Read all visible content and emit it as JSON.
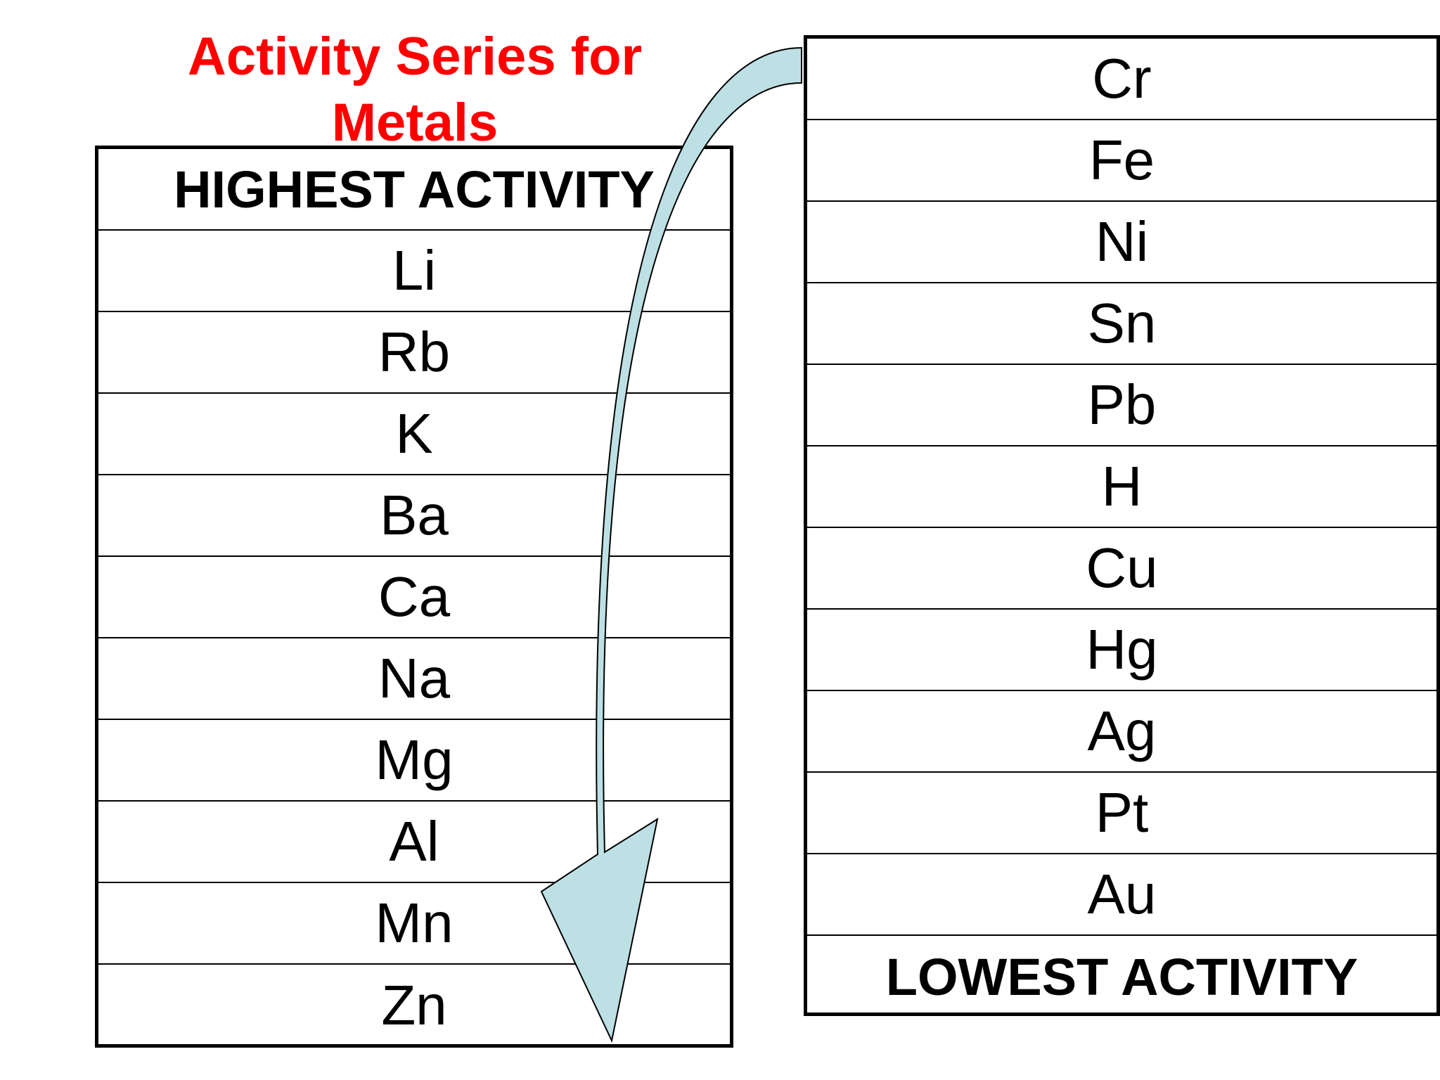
{
  "title": {
    "line1": "Activity Series for",
    "line2": "Metals"
  },
  "left_table": {
    "header": "HIGHEST ACTIVITY",
    "elements": [
      "Li",
      "Rb",
      "K",
      "Ba",
      "Ca",
      "Na",
      "Mg",
      "Al",
      "Mn",
      "Zn"
    ]
  },
  "right_table": {
    "elements": [
      "Cr",
      "Fe",
      "Ni",
      "Sn",
      "Pb",
      "H",
      "Cu",
      "Hg",
      "Ag",
      "Pt",
      "Au"
    ],
    "footer": "LOWEST ACTIVITY"
  },
  "colors": {
    "title": "#ff0000",
    "arrow_fill": "#bde0e4",
    "border": "#000000"
  }
}
